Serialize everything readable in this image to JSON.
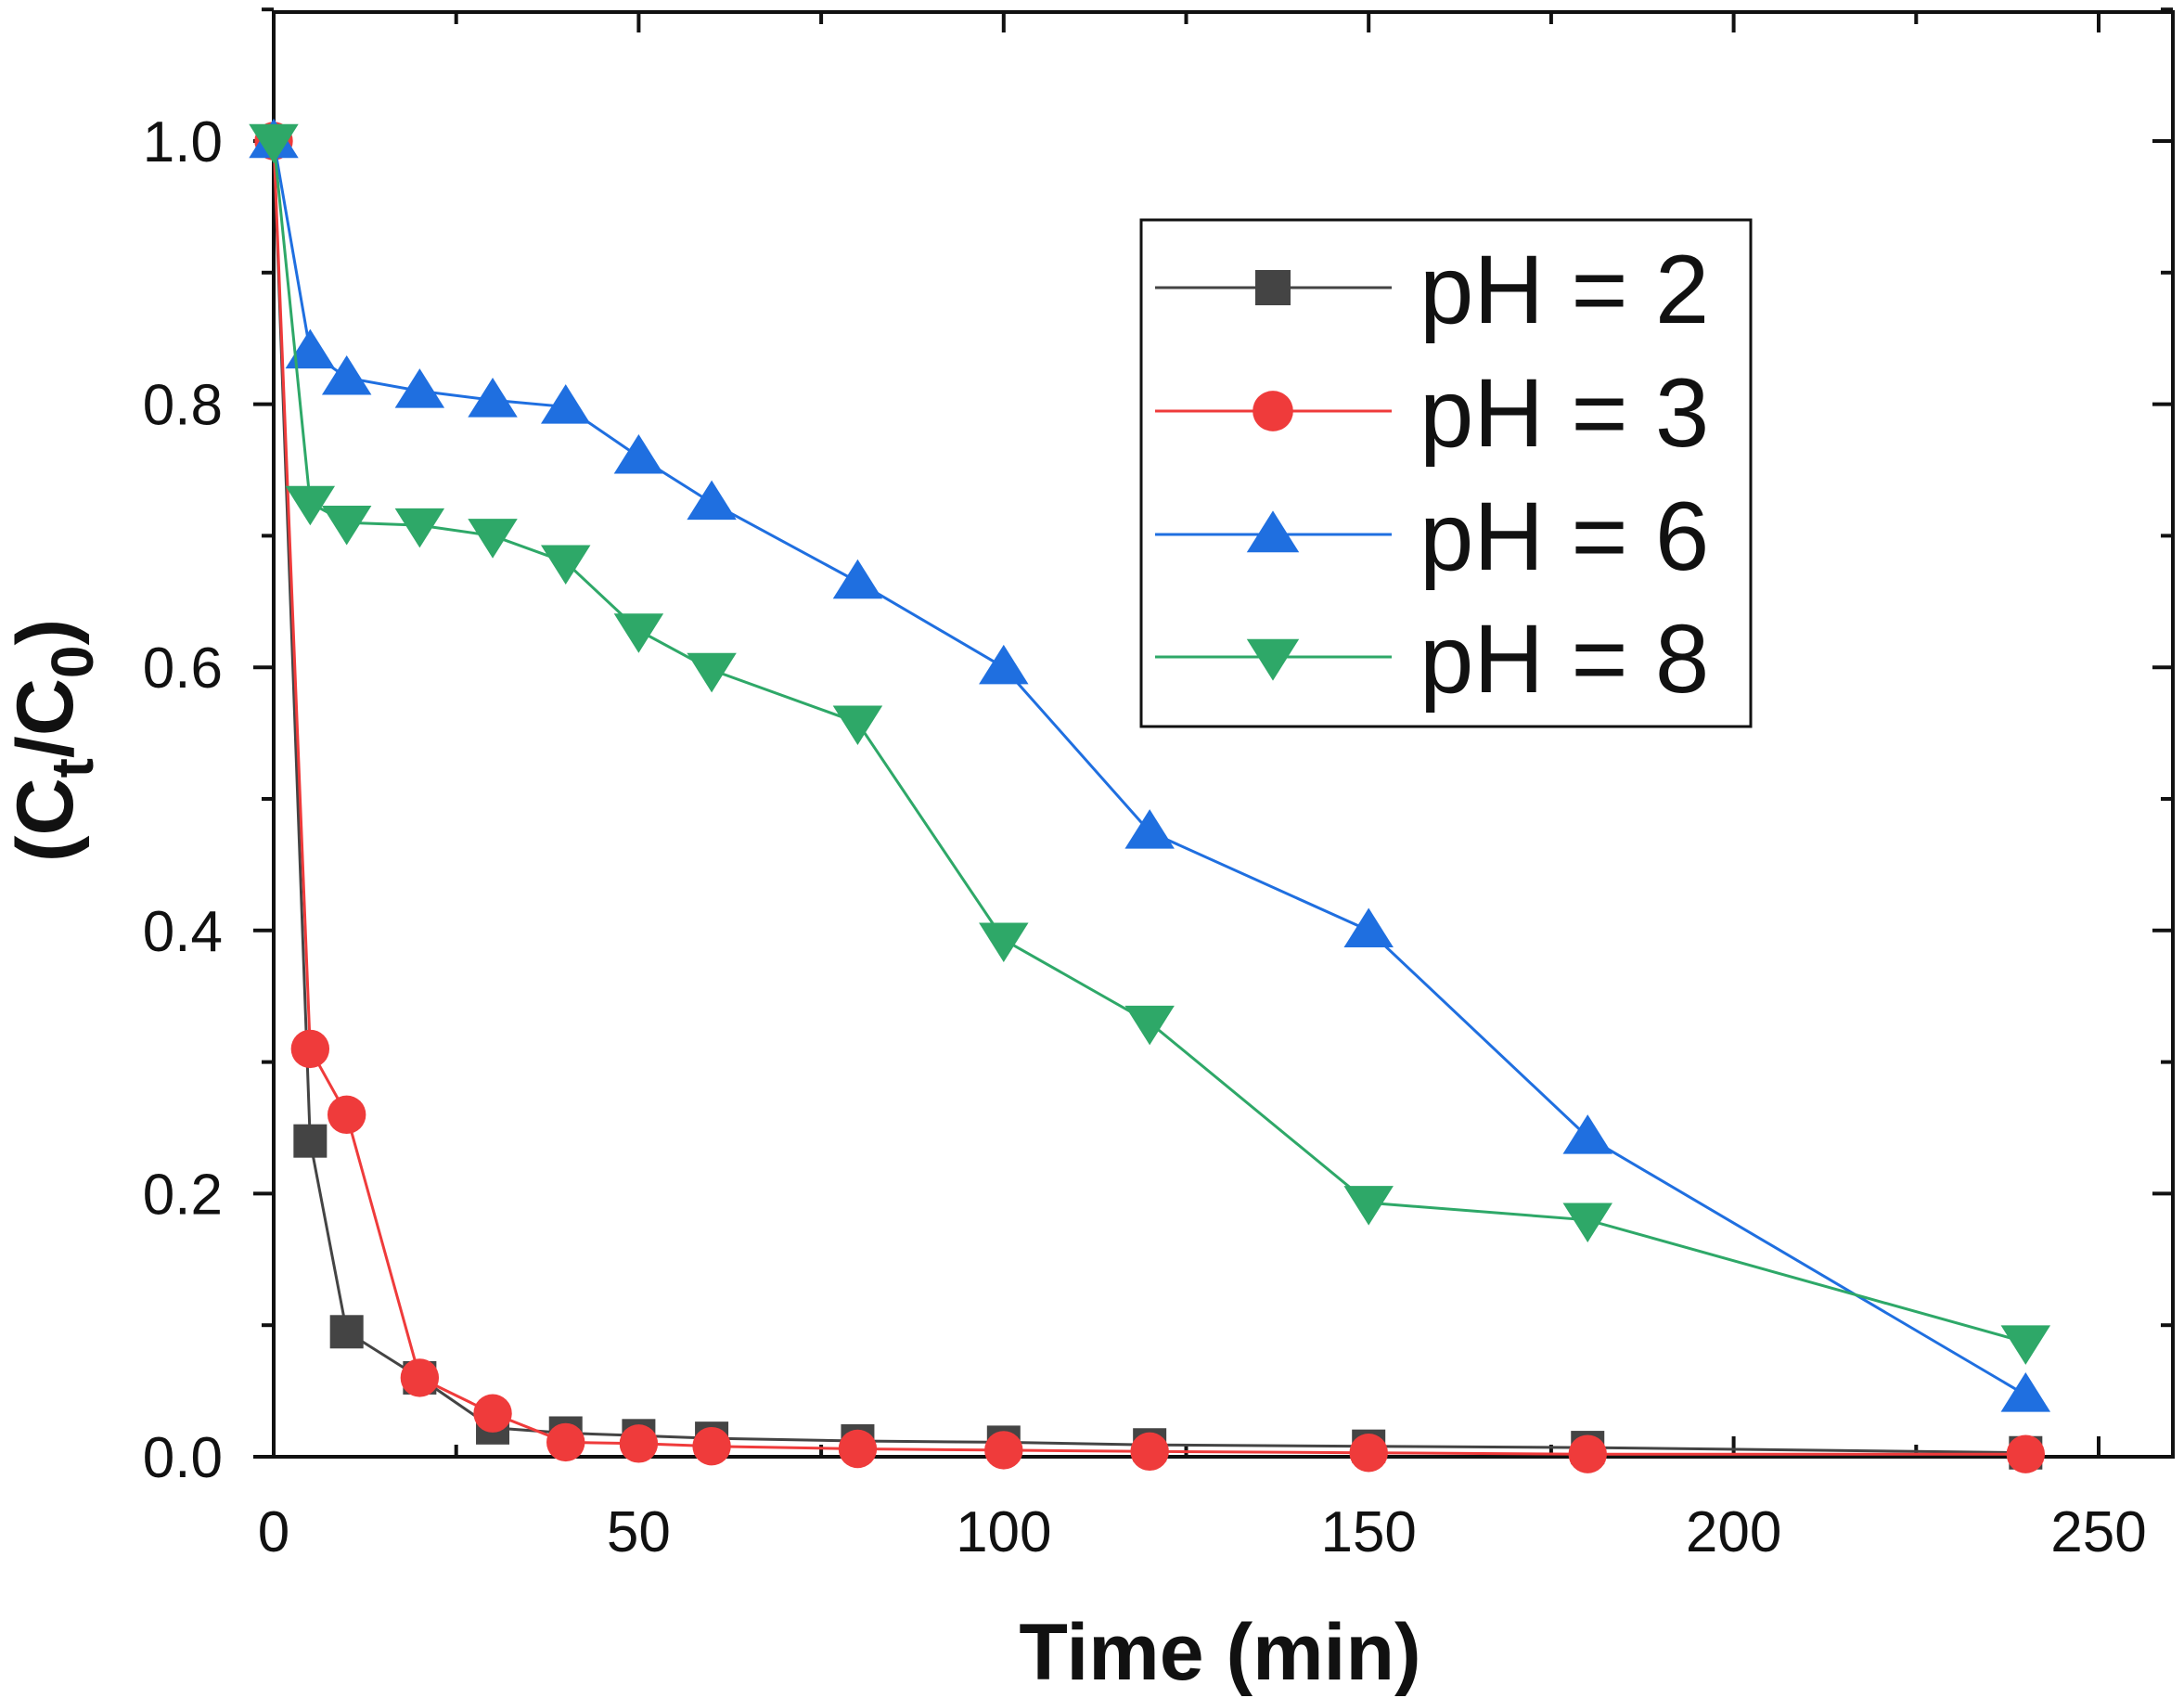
{
  "chart_data": {
    "type": "line",
    "title": "",
    "xlabel": "Time (min)",
    "ylabel_main": "(C",
    "ylabel_sub1": "t",
    "ylabel_mid": "/C",
    "ylabel_sub2": "0",
    "ylabel_end": ")",
    "xlim": [
      0,
      260
    ],
    "ylim": [
      0,
      1.1
    ],
    "x_ticks": [
      0,
      50,
      100,
      150,
      200,
      250
    ],
    "x_tick_labels": [
      "0",
      "50",
      "100",
      "150",
      "200",
      "250"
    ],
    "y_ticks": [
      0.0,
      0.2,
      0.4,
      0.6,
      0.8,
      1.0
    ],
    "y_tick_labels": [
      "0.0",
      "0.2",
      "0.4",
      "0.6",
      "0.8",
      "1.0"
    ],
    "grid": false,
    "legend_position": "top-right",
    "series": [
      {
        "name": "pH = 2",
        "color": "#444444",
        "marker": "square",
        "x": [
          0,
          5,
          10,
          20,
          30,
          40,
          50,
          60,
          80,
          100,
          120,
          150,
          180,
          240
        ],
        "y": [
          1.0,
          0.24,
          0.095,
          0.06,
          0.022,
          0.018,
          0.016,
          0.014,
          0.012,
          0.011,
          0.009,
          0.008,
          0.007,
          0.003
        ]
      },
      {
        "name": "pH = 3",
        "color": "#ef3b3b",
        "marker": "circle",
        "x": [
          0,
          5,
          10,
          20,
          30,
          40,
          50,
          60,
          80,
          100,
          120,
          150,
          180,
          240
        ],
        "y": [
          1.0,
          0.31,
          0.26,
          0.06,
          0.033,
          0.011,
          0.01,
          0.008,
          0.006,
          0.005,
          0.004,
          0.003,
          0.002,
          0.002
        ]
      },
      {
        "name": "pH = 6",
        "color": "#1f6fe0",
        "marker": "triangle-up",
        "x": [
          0,
          5,
          10,
          20,
          30,
          40,
          50,
          60,
          80,
          100,
          120,
          150,
          180,
          240
        ],
        "y": [
          1.0,
          0.84,
          0.82,
          0.81,
          0.803,
          0.798,
          0.76,
          0.725,
          0.665,
          0.6,
          0.475,
          0.4,
          0.243,
          0.047
        ]
      },
      {
        "name": "pH = 8",
        "color": "#2ea868",
        "marker": "triangle-down",
        "x": [
          0,
          5,
          10,
          20,
          30,
          40,
          50,
          60,
          80,
          100,
          120,
          150,
          180,
          240
        ],
        "y": [
          1.0,
          0.725,
          0.71,
          0.708,
          0.7,
          0.68,
          0.628,
          0.598,
          0.558,
          0.393,
          0.33,
          0.193,
          0.18,
          0.087
        ]
      }
    ]
  }
}
